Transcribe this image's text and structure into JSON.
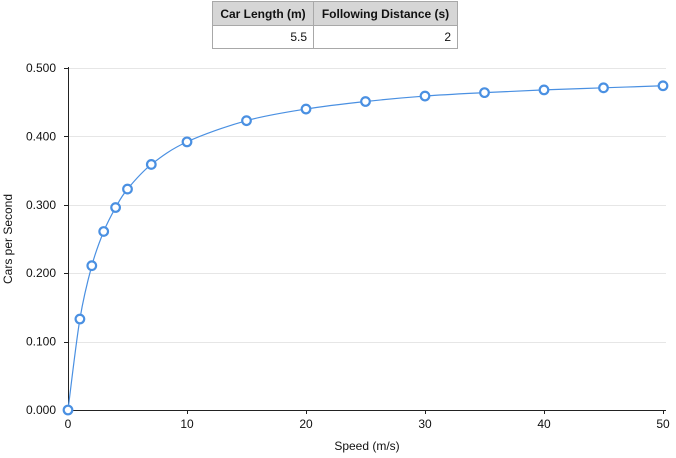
{
  "table": {
    "headers": [
      "Car Length (m)",
      "Following Distance (s)"
    ],
    "row": [
      "5.5",
      "2"
    ]
  },
  "chart_data": {
    "type": "line",
    "title": "",
    "xlabel": "Speed (m/s)",
    "ylabel": "Cars per Second",
    "xlim": [
      0,
      50
    ],
    "ylim": [
      0,
      0.5
    ],
    "xticks": [
      0,
      10,
      20,
      30,
      40,
      50
    ],
    "yticks": [
      "0.000",
      "0.100",
      "0.200",
      "0.300",
      "0.400",
      "0.500"
    ],
    "ytick_values": [
      0,
      0.1,
      0.2,
      0.3,
      0.4,
      0.5
    ],
    "grid": true,
    "line_color": "#4a90e2",
    "series": [
      {
        "name": "Cars per Second",
        "x": [
          0,
          1,
          2,
          3,
          4,
          5,
          7,
          10,
          15,
          20,
          25,
          30,
          35,
          40,
          45,
          50
        ],
        "values": [
          0.0,
          0.133,
          0.211,
          0.261,
          0.296,
          0.323,
          0.359,
          0.392,
          0.423,
          0.44,
          0.451,
          0.459,
          0.464,
          0.468,
          0.471,
          0.474
        ]
      }
    ]
  }
}
